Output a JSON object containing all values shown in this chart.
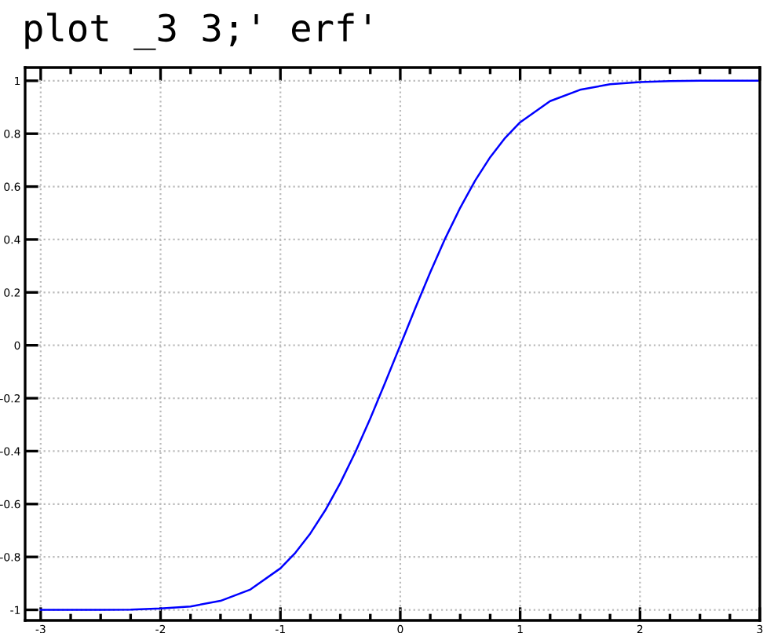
{
  "chart_data": {
    "type": "line",
    "title": "plot _3 3;' erf'",
    "x": [
      -3,
      -2.75,
      -2.5,
      -2.25,
      -2,
      -1.75,
      -1.5,
      -1.25,
      -1,
      -0.875,
      -0.75,
      -0.625,
      -0.5,
      -0.375,
      -0.25,
      -0.125,
      0,
      0.125,
      0.25,
      0.375,
      0.5,
      0.625,
      0.75,
      0.875,
      1,
      1.25,
      1.5,
      1.75,
      2,
      2.25,
      2.5,
      2.75,
      3
    ],
    "series": [
      {
        "color": "#0000ff",
        "values": [
          -1.0,
          -1.0,
          -1.0,
          -0.999,
          -0.995,
          -0.987,
          -0.966,
          -0.923,
          -0.843,
          -0.784,
          -0.711,
          -0.623,
          -0.52,
          -0.404,
          -0.276,
          -0.14,
          0,
          0.14,
          0.276,
          0.404,
          0.52,
          0.623,
          0.711,
          0.784,
          0.843,
          0.923,
          0.966,
          0.987,
          0.995,
          0.999,
          1.0,
          1.0,
          1.0
        ]
      }
    ],
    "xlim": [
      -3.13,
      3
    ],
    "ylim": [
      -1.04,
      1.05
    ],
    "xticks": [
      -3,
      -2,
      -1,
      0,
      1,
      2,
      3
    ],
    "yticks": [
      -1,
      -0.8,
      -0.6,
      -0.4,
      -0.2,
      0,
      0.2,
      0.4,
      0.6,
      0.8,
      1
    ],
    "grid": true,
    "line_style": "solid"
  }
}
